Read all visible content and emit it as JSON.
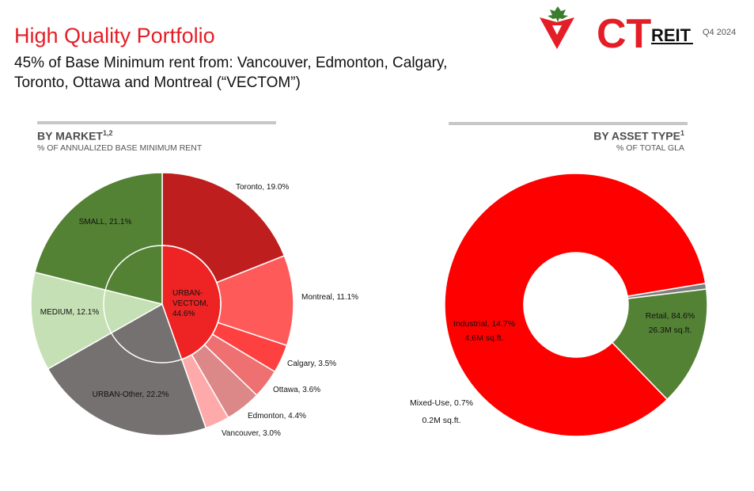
{
  "header": {
    "title": "High Quality Portfolio",
    "subtitle": "45% of Base Minimum rent from: Vancouver, Edmonton, Calgary, Toronto, Ottawa and Montreal (“VECTOM”)",
    "logo_text": "CT",
    "logo_suffix": "REIT",
    "period": "Q4 2024"
  },
  "colors": {
    "brand_red": "#e41e26",
    "small": "#548235",
    "medium": "#c5e0b4",
    "urban_other": "#767171",
    "urban_vectom": "#ee2424",
    "retail": "#ff0000",
    "industrial": "#548235",
    "mixed_use": "#7f7f7f"
  },
  "left_section": {
    "heading": "BY MARKET",
    "heading_sup": "1,2",
    "subheading": "% OF ANNUALIZED BASE MINIMUM RENT"
  },
  "right_section": {
    "heading": "BY ASSET TYPE",
    "heading_sup": "1",
    "subheading": "% OF TOTAL GLA"
  },
  "chart_data": [
    {
      "type": "pie",
      "name": "By Market",
      "inner_ring": [
        {
          "label": "URBAN-VECTOM",
          "value": 44.6,
          "display": "URBAN-\nVECTOM,\n44.6%",
          "color": "#ee2424"
        },
        {
          "label": "URBAN-Other",
          "value": 22.2,
          "display": "URBAN-Other, 22.2%",
          "color": "#767171"
        },
        {
          "label": "MEDIUM",
          "value": 12.1,
          "display": "MEDIUM, 12.1%",
          "color": "#c5e0b4"
        },
        {
          "label": "SMALL",
          "value": 21.1,
          "display": "SMALL, 21.1%",
          "color": "#548235"
        }
      ],
      "outer_ring": [
        {
          "label": "Toronto",
          "value": 19.0,
          "display": "Toronto, 19.0%",
          "color": "#be1e1e"
        },
        {
          "label": "Montreal",
          "value": 11.1,
          "display": "Montreal, 11.1%",
          "color": "#ff5a5a"
        },
        {
          "label": "Calgary",
          "value": 3.5,
          "display": "Calgary, 3.5%",
          "color": "#ff4040"
        },
        {
          "label": "Ottawa",
          "value": 3.6,
          "display": "Ottawa, 3.6%",
          "color": "#ee7070"
        },
        {
          "label": "Edmonton",
          "value": 4.4,
          "display": "Edmonton, 4.4%",
          "color": "#dc8888"
        },
        {
          "label": "Vancouver",
          "value": 3.0,
          "display": "Vancouver, 3.0%",
          "color": "#ffaaaa"
        }
      ]
    },
    {
      "type": "pie",
      "name": "By Asset Type",
      "donut": true,
      "slices": [
        {
          "label": "Retail",
          "value": 84.6,
          "line1": "Retail, 84.6%",
          "line2": "26.3M sq.ft.",
          "color": "#ff0000"
        },
        {
          "label": "Mixed-Use",
          "value": 0.7,
          "line1": "Mixed-Use, 0.7%",
          "line2": "0.2M sq.ft.",
          "color": "#7f7f7f"
        },
        {
          "label": "Industrial",
          "value": 14.7,
          "line1": "Industrial, 14.7%",
          "line2": "4.6M sq.ft.",
          "color": "#548235"
        }
      ]
    }
  ]
}
